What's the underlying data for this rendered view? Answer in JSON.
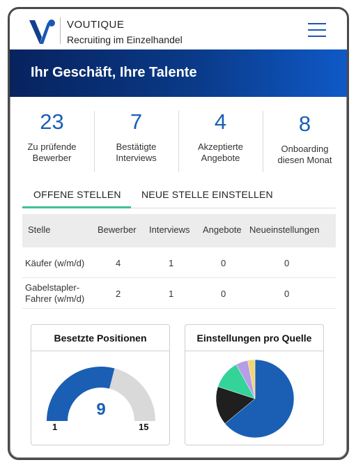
{
  "brand": {
    "name": "VOUTIQUE",
    "tagline": "Recruiting im Einzelhandel",
    "accent": "#1a56b8"
  },
  "hero": {
    "title": "Ihr Geschäft, Ihre Talente"
  },
  "stats": [
    {
      "value": "23",
      "label_line1": "Zu prüfende",
      "label_line2": "Bewerber"
    },
    {
      "value": "7",
      "label_line1": "Bestätigte",
      "label_line2": "Interviews"
    },
    {
      "value": "4",
      "label_line1": "Akzeptierte",
      "label_line2": "Angebote"
    },
    {
      "value": "8",
      "label_line1": "Onboarding",
      "label_line2": "diesen Monat"
    }
  ],
  "tabs": [
    {
      "label": "OFFENE STELLEN",
      "active": true
    },
    {
      "label": "NEUE STELLE EINSTELLEN",
      "active": false
    }
  ],
  "table": {
    "columns": [
      "Stelle",
      "Bewerber",
      "Interviews",
      "Angebote",
      "Neueinstellungen"
    ],
    "rows": [
      {
        "stelle_line1": "Käufer (w/m/d)",
        "stelle_line2": "",
        "bewerber": "4",
        "interviews": "1",
        "angebote": "0",
        "neueinstellungen": "0"
      },
      {
        "stelle_line1": "Gabelstapler-",
        "stelle_line2": "Fahrer (w/m/d)",
        "bewerber": "2",
        "interviews": "1",
        "angebote": "0",
        "neueinstellungen": "0"
      }
    ]
  },
  "gauge": {
    "title": "Besetzte Positionen",
    "value": "9",
    "min": "1",
    "max": "15",
    "fraction": 0.58,
    "color_fill": "#1a5fb4",
    "color_rest": "#d9d9d9"
  },
  "chart_data": {
    "type": "pie",
    "title": "Einstellungen pro Quelle",
    "values": [
      64,
      16,
      12,
      5,
      3
    ],
    "colors": [
      "#1a5fb4",
      "#1f1f1f",
      "#34d39a",
      "#b79ce6",
      "#f2d675"
    ]
  }
}
